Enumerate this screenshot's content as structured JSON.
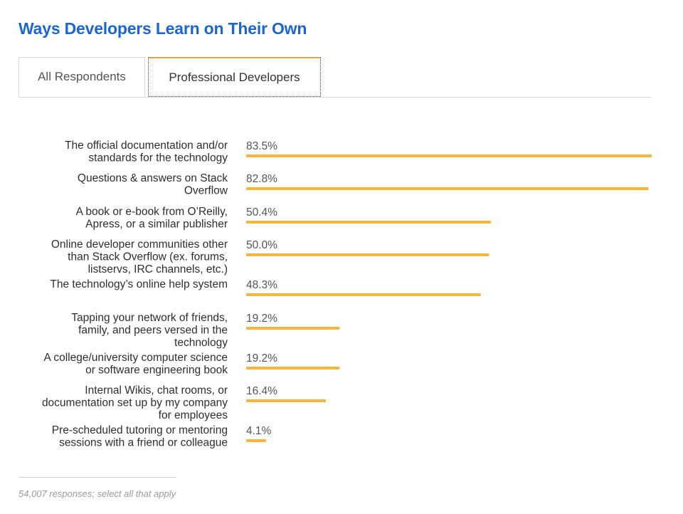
{
  "page": {
    "title": "Ways Developers Learn on Their Own",
    "footnote": "54,007 responses; select all that apply"
  },
  "tabs": [
    {
      "label": "All Respondents",
      "active": false
    },
    {
      "label": "Professional Developers",
      "active": true
    }
  ],
  "colors": {
    "bar": "#f5b73b",
    "title": "#1a66d4",
    "active_tab_top": "#f0a23a"
  },
  "chart_data": {
    "type": "bar",
    "orientation": "horizontal",
    "title": "Ways Developers Learn on Their Own",
    "xlim": [
      0,
      83.5
    ],
    "grid": false,
    "categories": [
      [
        "The official documentation and/or",
        "standards for the technology"
      ],
      [
        "Questions & answers on Stack",
        "Overflow"
      ],
      [
        "A book or e-book from O’Reilly,",
        "Apress, or a similar publisher"
      ],
      [
        "Online developer communities other",
        "than Stack Overflow (ex. forums,",
        "listservs, IRC channels, etc.)"
      ],
      [
        "The technology’s online help system"
      ],
      [
        "Tapping your network of friends,",
        "family, and peers versed in the",
        "technology"
      ],
      [
        "A college/university computer science",
        "or software engineering book"
      ],
      [
        "Internal Wikis, chat rooms, or",
        "documentation set up by my company",
        "for employees"
      ],
      [
        "Pre-scheduled tutoring or mentoring",
        "sessions with a friend or colleague"
      ]
    ],
    "values": [
      83.5,
      82.8,
      50.4,
      50.0,
      48.3,
      19.2,
      19.2,
      16.4,
      4.1
    ],
    "value_labels": [
      "83.5%",
      "82.8%",
      "50.4%",
      "50.0%",
      "48.3%",
      "19.2%",
      "19.2%",
      "16.4%",
      "4.1%"
    ]
  }
}
